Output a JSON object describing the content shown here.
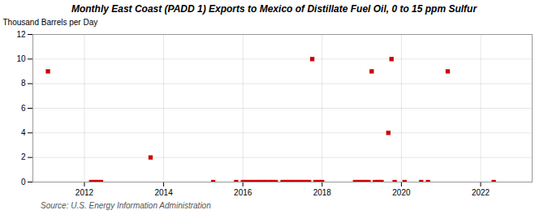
{
  "chart_data": {
    "type": "scatter",
    "title": "Monthly East Coast (PADD 1) Exports to Mexico of Distillate Fuel Oil, 0 to 15 ppm Sulfur",
    "ylabel": "Thousand Barrels per Day",
    "source": "Source: U.S. Energy Information Administration",
    "x": [
      2011.08,
      2012.17,
      2012.25,
      2012.33,
      2012.42,
      2013.67,
      2015.25,
      2015.83,
      2016.0,
      2016.08,
      2016.17,
      2016.25,
      2016.33,
      2016.42,
      2016.5,
      2016.58,
      2016.67,
      2016.75,
      2016.83,
      2017.0,
      2017.08,
      2017.17,
      2017.25,
      2017.33,
      2017.42,
      2017.5,
      2017.58,
      2017.67,
      2017.75,
      2017.83,
      2017.92,
      2018.0,
      2018.83,
      2018.92,
      2019.0,
      2019.08,
      2019.17,
      2019.25,
      2019.33,
      2019.42,
      2019.5,
      2019.67,
      2019.75,
      2019.83,
      2020.08,
      2020.5,
      2020.67,
      2021.17,
      2022.33
    ],
    "values": [
      9,
      0,
      0,
      0,
      0,
      2,
      0,
      0,
      0,
      0,
      0,
      0,
      0,
      0,
      0,
      0,
      0,
      0,
      0,
      0,
      0,
      0,
      0,
      0,
      0,
      0,
      0,
      0,
      10,
      0,
      0,
      0,
      0,
      0,
      0,
      0,
      0,
      9,
      0,
      0,
      0,
      4,
      10,
      0,
      0,
      0,
      0,
      9,
      0
    ],
    "color": "#cc0000",
    "marker": "square",
    "xlim": [
      2010.7,
      2023.3
    ],
    "xticks": [
      2012,
      2014,
      2016,
      2018,
      2020,
      2022
    ],
    "ylim": [
      0,
      12
    ],
    "yticks": [
      0,
      2,
      4,
      6,
      8,
      10,
      12
    ],
    "grid": true
  }
}
